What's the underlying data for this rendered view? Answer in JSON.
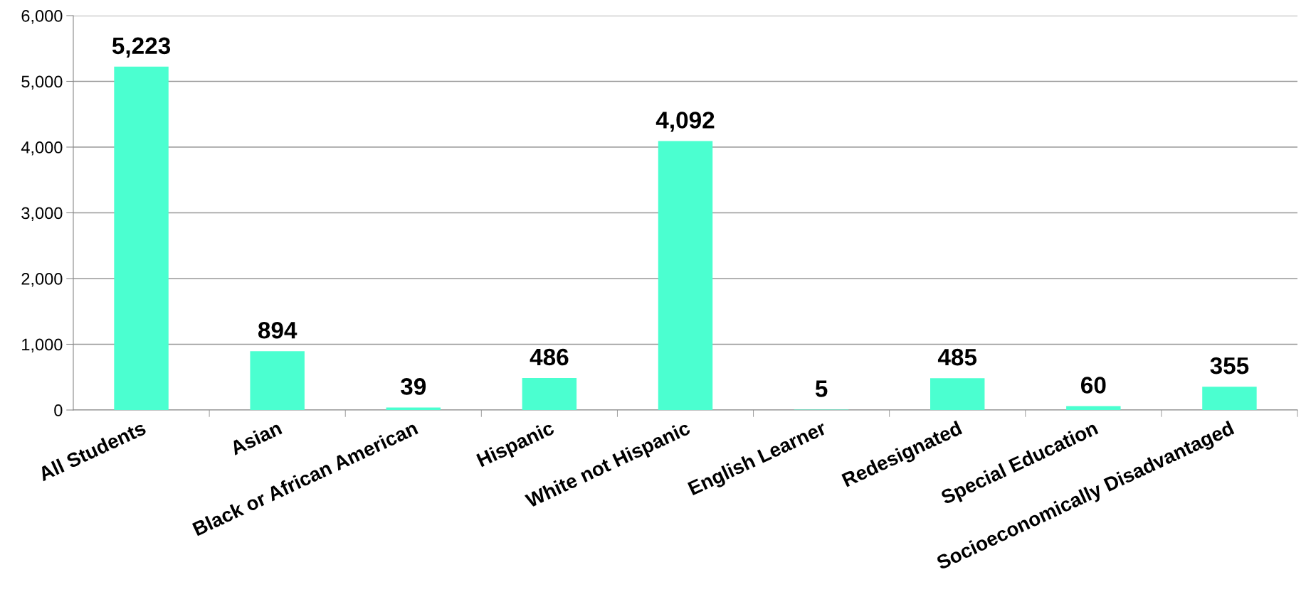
{
  "chart_data": {
    "type": "bar",
    "categories": [
      "All Students",
      "Asian",
      "Black or African American",
      "Hispanic",
      "White not Hispanic",
      "English Learner",
      "Redesignated",
      "Special Education",
      "Socioeconomically Disadvantaged"
    ],
    "values": [
      5223,
      894,
      39,
      486,
      4092,
      5,
      485,
      60,
      355
    ],
    "value_labels": [
      "5,223",
      "894",
      "39",
      "486",
      "4,092",
      "5",
      "485",
      "60",
      "355"
    ],
    "color": "#4bffd0",
    "ylim": [
      0,
      6000
    ],
    "yticks": [
      {
        "value": 0,
        "label": "0"
      },
      {
        "value": 1000,
        "label": "1,000"
      },
      {
        "value": 2000,
        "label": "2,000"
      },
      {
        "value": 3000,
        "label": "3,000"
      },
      {
        "value": 4000,
        "label": "4,000"
      },
      {
        "value": 5000,
        "label": "5,000"
      },
      {
        "value": 6000,
        "label": "6,000"
      }
    ],
    "grid": "y",
    "legend": false
  }
}
